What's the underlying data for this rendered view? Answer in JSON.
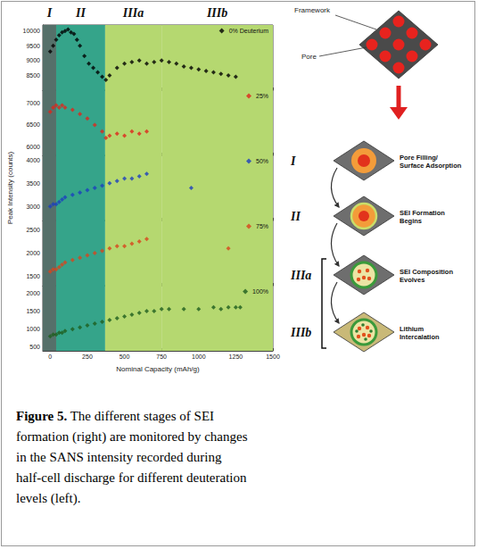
{
  "regions": [
    {
      "label": "I",
      "from": -50,
      "to": 40,
      "color": "#55706a"
    },
    {
      "label": "II",
      "from": 40,
      "to": 370,
      "color": "#35a48a"
    },
    {
      "label": "IIIa",
      "from": 370,
      "to": 750,
      "color": "#b5d870"
    },
    {
      "label": "IIIb",
      "from": 750,
      "to": 1500,
      "color": "#b5d870"
    }
  ],
  "shared_axes": {
    "xlabel": "Nominal Capacity (mAh/g)",
    "ylabel": "Peak Intensity (counts)"
  },
  "chart_data": [
    {
      "type": "scatter",
      "x": [
        0,
        20,
        40,
        60,
        80,
        100,
        120,
        140,
        160,
        180,
        200,
        230,
        260,
        290,
        320,
        350,
        375,
        400,
        450,
        500,
        550,
        600,
        650,
        700,
        750,
        800,
        850,
        900,
        950,
        1000,
        1050,
        1100,
        1150,
        1200,
        1250
      ],
      "series": [
        {
          "name": "0% Deuterium",
          "color": "#000000",
          "marker": "diamond",
          "values": [
            9300,
            9500,
            9700,
            9850,
            9950,
            10000,
            10050,
            9950,
            9900,
            9700,
            9500,
            9150,
            8900,
            8750,
            8600,
            8450,
            8350,
            8500,
            8750,
            8900,
            8950,
            9000,
            8900,
            8950,
            9000,
            8950,
            8900,
            8800,
            8750,
            8700,
            8650,
            8600,
            8550,
            8500,
            8450
          ]
        }
      ],
      "xlim": [
        -50,
        1500
      ],
      "xticks": [
        0,
        250,
        500,
        750,
        1000,
        1250,
        1500
      ],
      "ylim": [
        8000,
        10200
      ],
      "yticks": [
        8500,
        9000,
        9500,
        10000
      ],
      "grid": false,
      "legend": "upper right",
      "tick_labels": "y"
    },
    {
      "type": "scatter",
      "x": [
        0,
        20,
        40,
        60,
        80,
        100,
        150,
        200,
        250,
        300,
        350,
        375,
        400,
        450,
        500,
        550,
        600,
        650
      ],
      "series": [
        {
          "name": "25%",
          "color": "#e0261b",
          "marker": "diamond",
          "values": [
            6800,
            6900,
            6950,
            6900,
            6950,
            6900,
            6850,
            6750,
            6650,
            6500,
            6350,
            6200,
            6250,
            6300,
            6250,
            6350,
            6300,
            6350
          ]
        }
      ],
      "xlim": [
        -50,
        1500
      ],
      "xticks": [
        0,
        250,
        500,
        750,
        1000,
        1250,
        1500
      ],
      "ylim": [
        5800,
        7300
      ],
      "yticks": [
        6000,
        6500,
        7000
      ],
      "grid": false,
      "legend": "upper right",
      "tick_labels": "y"
    },
    {
      "type": "scatter",
      "x": [
        0,
        20,
        40,
        60,
        80,
        100,
        150,
        200,
        250,
        300,
        350,
        400,
        450,
        500,
        550,
        600,
        650,
        950
      ],
      "series": [
        {
          "name": "50%",
          "color": "#1c3fbf",
          "marker": "diamond",
          "values": [
            3000,
            3050,
            3050,
            3100,
            3150,
            3200,
            3250,
            3300,
            3350,
            3400,
            3450,
            3500,
            3550,
            3600,
            3600,
            3650,
            3700,
            3400
          ]
        }
      ],
      "xlim": [
        -50,
        1500
      ],
      "xticks": [
        0,
        250,
        500,
        750,
        1000,
        1250,
        1500
      ],
      "ylim": [
        2700,
        4100
      ],
      "yticks": [
        3000,
        3500,
        4000
      ],
      "grid": false,
      "legend": "upper right",
      "tick_labels": "y"
    },
    {
      "type": "scatter",
      "x": [
        0,
        20,
        40,
        60,
        80,
        100,
        150,
        200,
        250,
        300,
        350,
        400,
        450,
        500,
        550,
        600,
        650,
        1200
      ],
      "series": [
        {
          "name": "75%",
          "color": "#d9441c",
          "marker": "diamond",
          "values": [
            1600,
            1650,
            1650,
            1700,
            1750,
            1800,
            1850,
            1900,
            1950,
            2000,
            2050,
            2100,
            2150,
            2150,
            2200,
            2250,
            2300,
            2100
          ]
        }
      ],
      "xlim": [
        -50,
        1500
      ],
      "xticks": [
        0,
        250,
        500,
        750,
        1000,
        1250,
        1500
      ],
      "ylim": [
        1300,
        2700
      ],
      "yticks": [
        1500,
        2000,
        2500
      ],
      "grid": false,
      "legend": "upper right",
      "tick_labels": "y"
    },
    {
      "type": "scatter",
      "x": [
        0,
        20,
        40,
        60,
        80,
        100,
        150,
        200,
        250,
        300,
        350,
        400,
        450,
        500,
        550,
        600,
        650,
        700,
        750,
        800,
        900,
        1000,
        1100,
        1150,
        1200,
        1250,
        1280
      ],
      "series": [
        {
          "name": "100%",
          "color": "#1e5e1e",
          "marker": "diamond",
          "values": [
            800,
            850,
            850,
            900,
            900,
            950,
            1000,
            1050,
            1100,
            1150,
            1200,
            1250,
            1300,
            1350,
            1400,
            1450,
            1500,
            1500,
            1550,
            1550,
            1550,
            1550,
            1600,
            1550,
            1600,
            1600,
            1600
          ]
        }
      ],
      "xlim": [
        -50,
        1500
      ],
      "xticks": [
        0,
        250,
        500,
        750,
        1000,
        1250,
        1500
      ],
      "ylim": [
        400,
        2200
      ],
      "yticks": [
        500,
        1000,
        1500,
        2000
      ],
      "grid": false,
      "legend": "upper right"
    }
  ],
  "diagram": {
    "framework_label": "Framework",
    "pore_label": "Pore",
    "stages": [
      {
        "numeral": "I",
        "label": "Pore Filling/ Surface Adsorption"
      },
      {
        "numeral": "II",
        "label": "SEI Formation Begins"
      },
      {
        "numeral": "IIIa",
        "label": "SEI Composition Evolves"
      },
      {
        "numeral": "IIIb",
        "label": "Lithium Intercalation"
      }
    ]
  },
  "caption": {
    "label": "Figure 5.",
    "text": "The different stages of SEI formation (right) are monitored by changes in the SANS intensity recorded during half-cell discharge for different deuteration levels (left)."
  }
}
